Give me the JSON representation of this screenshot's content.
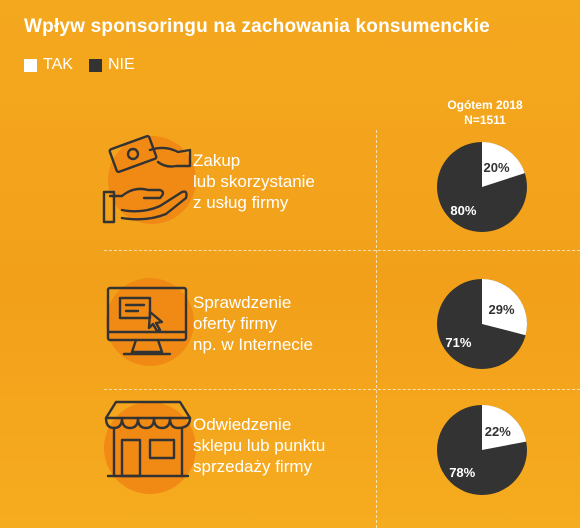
{
  "title": "Wpływ sponsoringu na zachowania konsumenckie",
  "legend": {
    "yes_label": "TAK",
    "no_label": "NIE",
    "yes_color": "#ffffff",
    "no_color": "#333333"
  },
  "column_header": {
    "line1": "Ogótem 2018",
    "line2": "N=1511"
  },
  "rows": [
    {
      "label_lines": [
        "Zakup",
        "lub skorzystanie",
        "z usług firmy"
      ],
      "icon": "money-hand-icon"
    },
    {
      "label_lines": [
        "Sprawdzenie",
        "oferty firmy",
        "np. w Internecie"
      ],
      "icon": "computer-monitor-icon"
    },
    {
      "label_lines": [
        "Odwiedzenie",
        "sklepu lub punktu",
        "sprzedaży firmy"
      ],
      "icon": "storefront-icon"
    }
  ],
  "chart_data": {
    "type": "pie",
    "series_names": [
      "TAK",
      "NIE"
    ],
    "colors": {
      "TAK": "#ffffff",
      "NIE": "#333333"
    },
    "pies": [
      {
        "category": "Zakup lub skorzystanie z usług firmy",
        "values": {
          "TAK": 20,
          "NIE": 80
        },
        "labels": {
          "TAK": "20%",
          "NIE": "80%"
        }
      },
      {
        "category": "Sprawdzenie oferty firmy np. w Internecie",
        "values": {
          "TAK": 29,
          "NIE": 71
        },
        "labels": {
          "TAK": "29%",
          "NIE": "71%"
        }
      },
      {
        "category": "Odwiedzenie sklepu lub punktu sprzedaży firmy",
        "values": {
          "TAK": 22,
          "NIE": 78
        },
        "labels": {
          "TAK": "22%",
          "NIE": "78%"
        }
      }
    ]
  }
}
